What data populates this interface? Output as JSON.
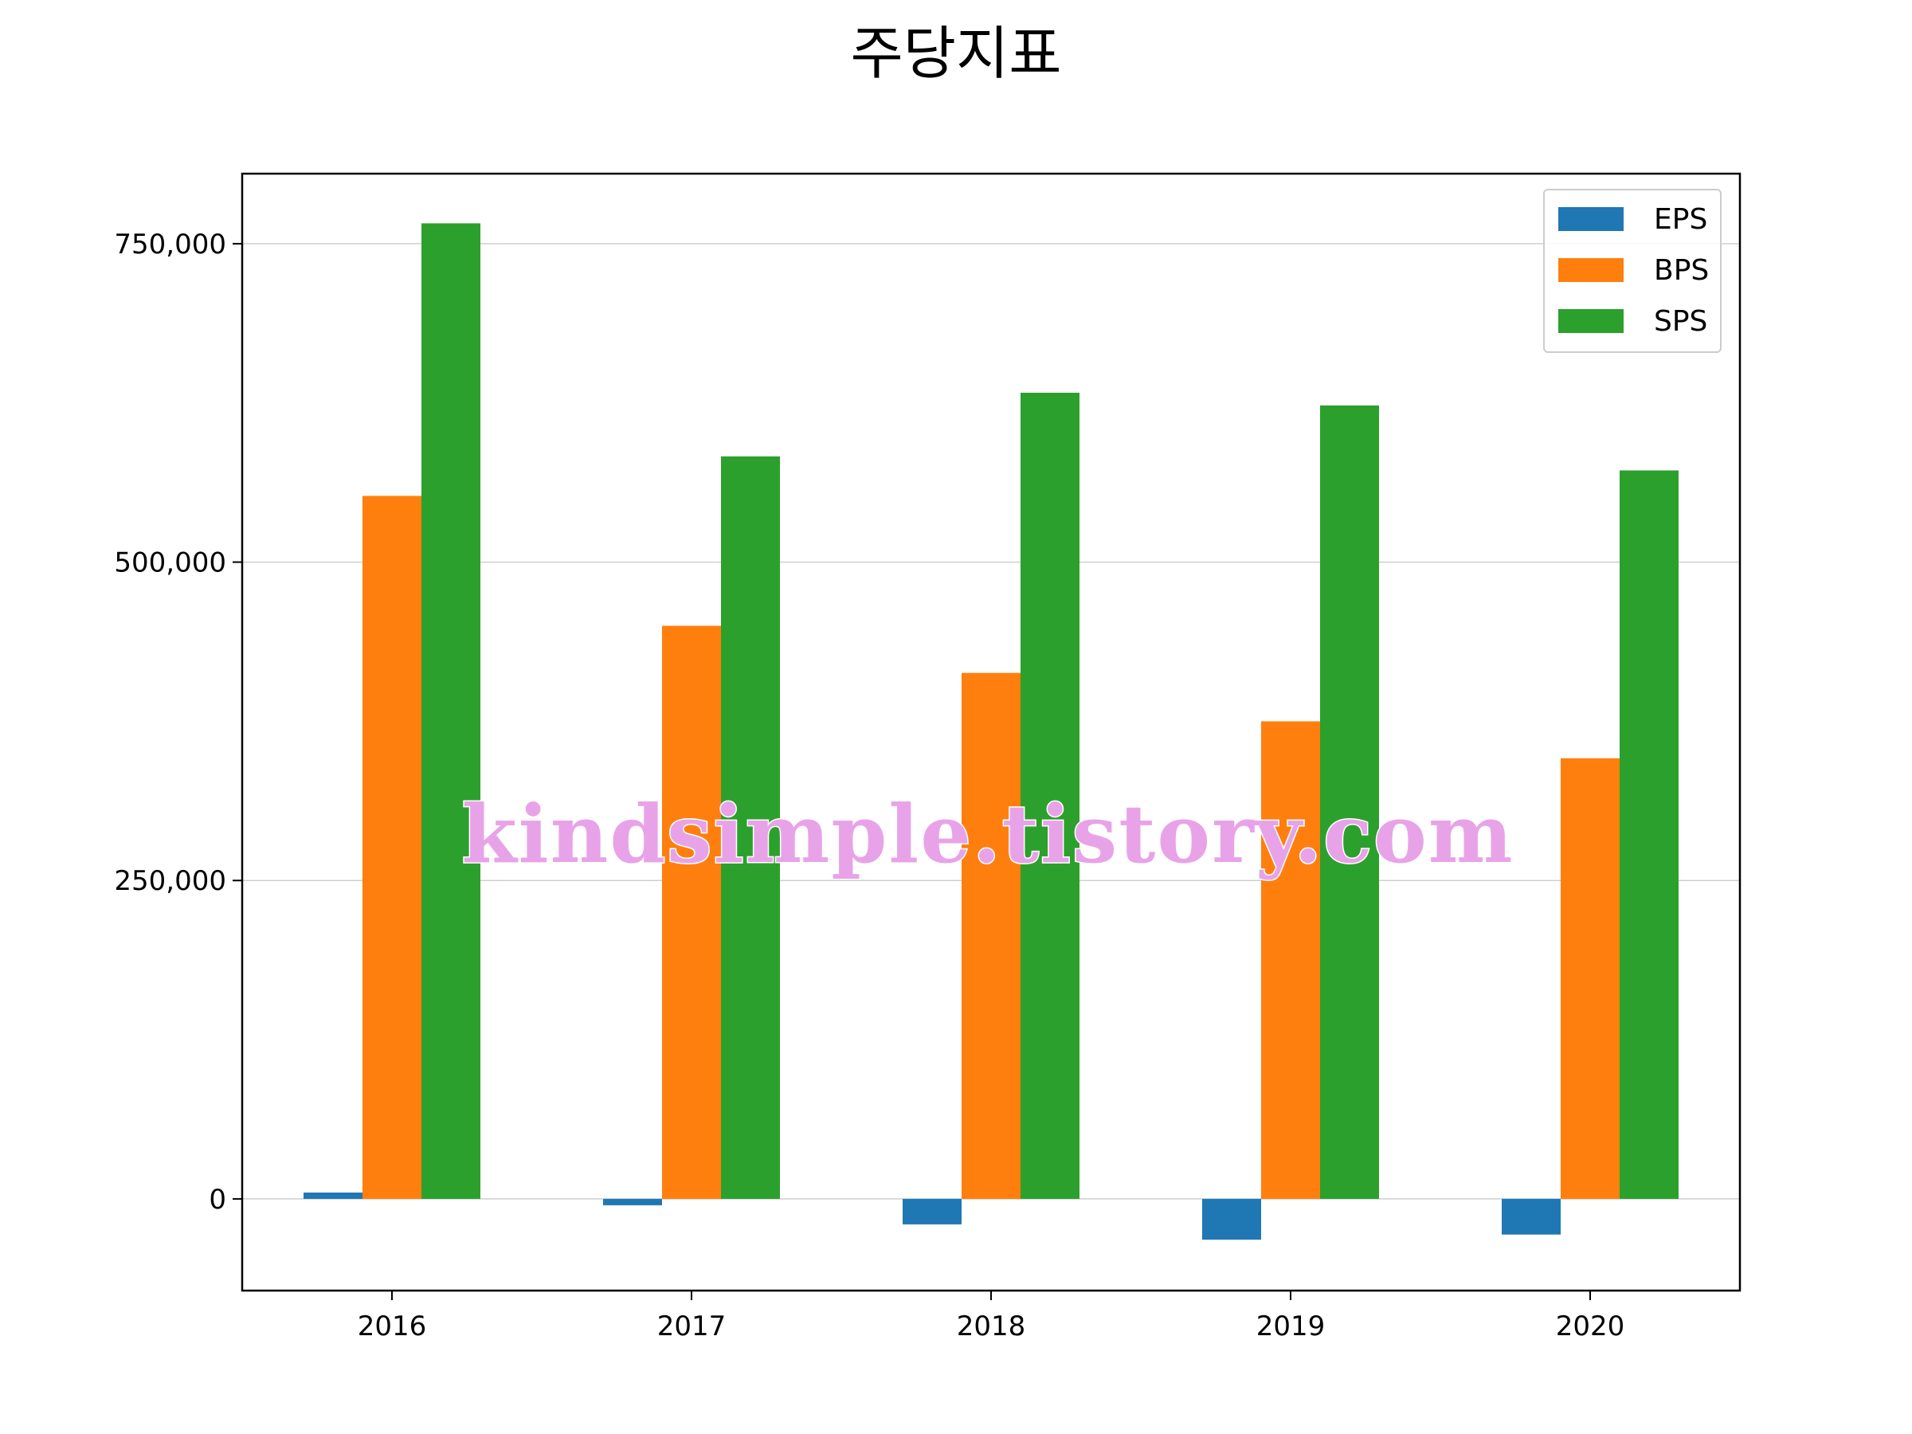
{
  "chart_data": {
    "type": "bar",
    "title": "주당지표",
    "xlabel": "",
    "ylabel": "",
    "categories": [
      "2016",
      "2017",
      "2018",
      "2019",
      "2020"
    ],
    "series": [
      {
        "name": "EPS",
        "color": "#1f77b4",
        "values": [
          5000,
          -5000,
          -20000,
          -32000,
          -28000
        ]
      },
      {
        "name": "BPS",
        "color": "#ff7f0e",
        "values": [
          552000,
          450000,
          413000,
          375000,
          346000
        ]
      },
      {
        "name": "SPS",
        "color": "#2ca02c",
        "values": [
          766000,
          583000,
          633000,
          623000,
          572000
        ]
      }
    ],
    "ylim": [
      -72000,
      805000
    ],
    "yticks": [
      0,
      250000,
      500000,
      750000
    ],
    "ytick_labels": [
      "0",
      "250,000",
      "500,000",
      "750,000"
    ],
    "grid": true,
    "legend_position": "top-right",
    "watermark": "kindsimple.tistory.com"
  }
}
